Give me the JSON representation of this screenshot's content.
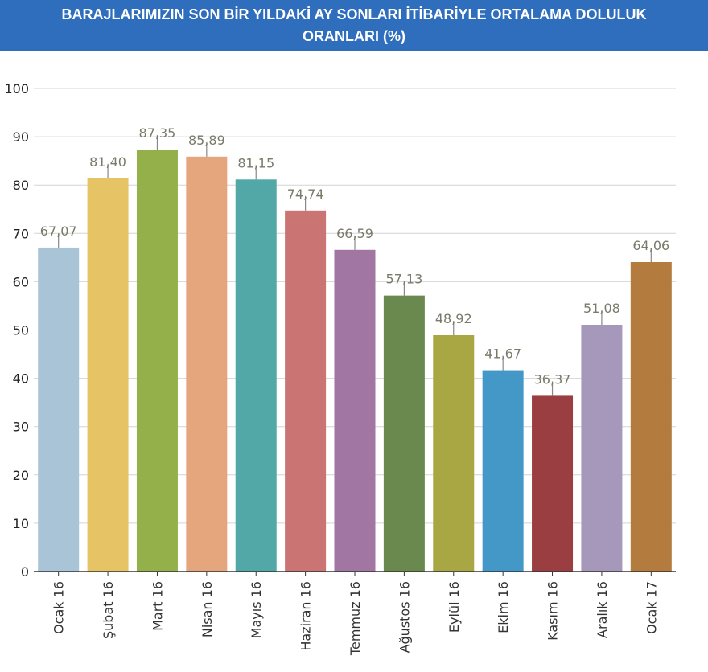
{
  "chart_data": {
    "type": "bar",
    "title_lines": [
      "BARAJLARIMIZIN SON BİR YILDAKİ AY SONLARI İTİBARİYLE ORTALAMA DOLULUK",
      "ORANLARI (%)"
    ],
    "xlabel": "",
    "ylabel": "",
    "ylim": [
      0,
      100
    ],
    "yticks": [
      "0",
      "10",
      "20",
      "30",
      "40",
      "50",
      "60",
      "70",
      "80",
      "90",
      "100"
    ],
    "categories": [
      "Ocak 16",
      "Şubat 16",
      "Mart 16",
      "Nisan 16",
      "Mayıs 16",
      "Haziran 16",
      "Temmuz 16",
      "Ağustos 16",
      "Eylül 16",
      "Ekim 16",
      "Kasım 16",
      "Aralık 16",
      "Ocak 17"
    ],
    "values": [
      67.07,
      81.4,
      87.35,
      85.89,
      81.15,
      74.74,
      66.59,
      57.13,
      48.92,
      41.67,
      36.37,
      51.08,
      64.06
    ],
    "value_labels": [
      "67,07",
      "81,40",
      "87,35",
      "85,89",
      "81,15",
      "74,74",
      "66,59",
      "57,13",
      "48,92",
      "41,67",
      "36,37",
      "51,08",
      "64,06"
    ],
    "colors": [
      "#a9c4d6",
      "#e6c465",
      "#94b04a",
      "#e5a57d",
      "#52a8a6",
      "#cb7474",
      "#a276a3",
      "#6a894e",
      "#a8a744",
      "#4398c8",
      "#9a3e41",
      "#a698bb",
      "#b47b3e"
    ],
    "grid": true,
    "legend": "none"
  }
}
